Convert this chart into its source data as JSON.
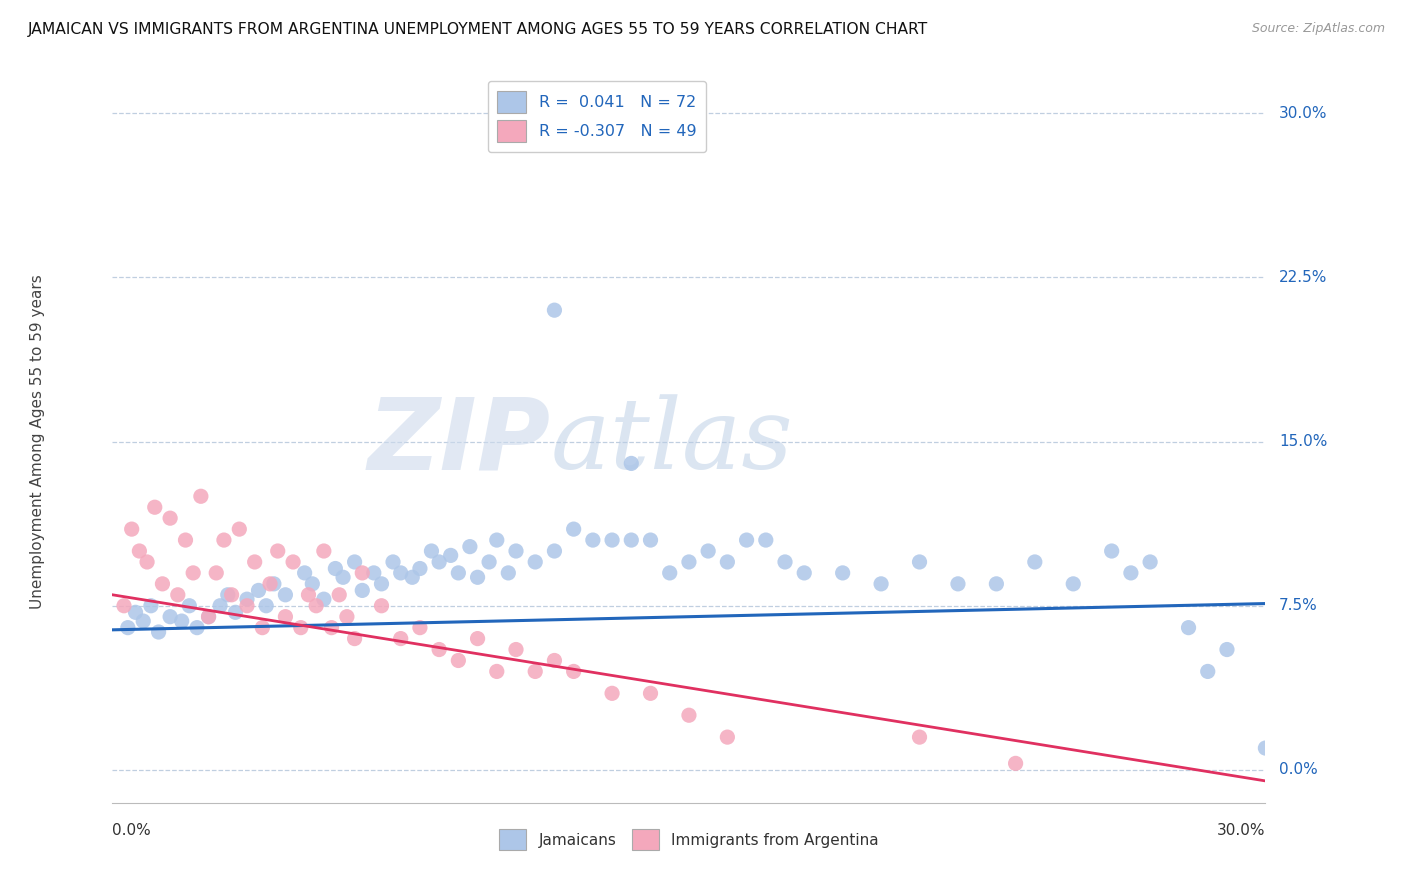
{
  "title": "JAMAICAN VS IMMIGRANTS FROM ARGENTINA UNEMPLOYMENT AMONG AGES 55 TO 59 YEARS CORRELATION CHART",
  "source": "Source: ZipAtlas.com",
  "ylabel": "Unemployment Among Ages 55 to 59 years",
  "ytick_labels": [
    "0.0%",
    "7.5%",
    "15.0%",
    "22.5%",
    "30.0%"
  ],
  "ytick_values": [
    0.0,
    7.5,
    15.0,
    22.5,
    30.0
  ],
  "xmin": 0.0,
  "xmax": 30.0,
  "ymin": -1.5,
  "ymax": 31.5,
  "blue_color": "#adc6e8",
  "pink_color": "#f4a8bc",
  "blue_line_color": "#2266bb",
  "pink_line_color": "#e03060",
  "legend_r_color": "#2266bb",
  "background_color": "#ffffff",
  "grid_color": "#c0cfe0",
  "watermark_zip": "ZIP",
  "watermark_atlas": "atlas",
  "label_jamaicans": "Jamaicans",
  "label_argentina": "Immigrants from Argentina",
  "blue_line_y0": 6.4,
  "blue_line_y1": 7.6,
  "pink_line_y0": 8.0,
  "pink_line_y1": -0.5,
  "blue_x": [
    0.4,
    0.6,
    0.8,
    1.0,
    1.2,
    1.5,
    1.8,
    2.0,
    2.2,
    2.5,
    2.8,
    3.0,
    3.2,
    3.5,
    3.8,
    4.0,
    4.2,
    4.5,
    5.0,
    5.2,
    5.5,
    5.8,
    6.0,
    6.3,
    6.5,
    6.8,
    7.0,
    7.3,
    7.5,
    7.8,
    8.0,
    8.3,
    8.5,
    8.8,
    9.0,
    9.3,
    9.5,
    9.8,
    10.0,
    10.3,
    10.5,
    11.0,
    11.5,
    12.0,
    12.5,
    13.0,
    13.5,
    14.0,
    14.5,
    15.0,
    15.5,
    16.0,
    16.5,
    17.0,
    17.5,
    18.0,
    19.0,
    20.0,
    21.0,
    22.0,
    23.0,
    24.0,
    25.0,
    26.0,
    26.5,
    27.0,
    28.0,
    28.5,
    29.0,
    30.0,
    11.5,
    13.5
  ],
  "blue_y": [
    6.5,
    7.2,
    6.8,
    7.5,
    6.3,
    7.0,
    6.8,
    7.5,
    6.5,
    7.0,
    7.5,
    8.0,
    7.2,
    7.8,
    8.2,
    7.5,
    8.5,
    8.0,
    9.0,
    8.5,
    7.8,
    9.2,
    8.8,
    9.5,
    8.2,
    9.0,
    8.5,
    9.5,
    9.0,
    8.8,
    9.2,
    10.0,
    9.5,
    9.8,
    9.0,
    10.2,
    8.8,
    9.5,
    10.5,
    9.0,
    10.0,
    9.5,
    10.0,
    11.0,
    10.5,
    10.5,
    10.5,
    10.5,
    9.0,
    9.5,
    10.0,
    9.5,
    10.5,
    10.5,
    9.5,
    9.0,
    9.0,
    8.5,
    9.5,
    8.5,
    8.5,
    9.5,
    8.5,
    10.0,
    9.0,
    9.5,
    6.5,
    4.5,
    5.5,
    1.0,
    21.0,
    14.0
  ],
  "pink_x": [
    0.3,
    0.5,
    0.7,
    0.9,
    1.1,
    1.3,
    1.5,
    1.7,
    1.9,
    2.1,
    2.3,
    2.5,
    2.7,
    2.9,
    3.1,
    3.3,
    3.5,
    3.7,
    3.9,
    4.1,
    4.3,
    4.5,
    4.7,
    4.9,
    5.1,
    5.3,
    5.5,
    5.7,
    5.9,
    6.1,
    6.3,
    6.5,
    7.0,
    7.5,
    8.0,
    8.5,
    9.0,
    9.5,
    10.0,
    10.5,
    11.0,
    11.5,
    12.0,
    13.0,
    14.0,
    15.0,
    16.0,
    21.0,
    23.5
  ],
  "pink_y": [
    7.5,
    11.0,
    10.0,
    9.5,
    12.0,
    8.5,
    11.5,
    8.0,
    10.5,
    9.0,
    12.5,
    7.0,
    9.0,
    10.5,
    8.0,
    11.0,
    7.5,
    9.5,
    6.5,
    8.5,
    10.0,
    7.0,
    9.5,
    6.5,
    8.0,
    7.5,
    10.0,
    6.5,
    8.0,
    7.0,
    6.0,
    9.0,
    7.5,
    6.0,
    6.5,
    5.5,
    5.0,
    6.0,
    4.5,
    5.5,
    4.5,
    5.0,
    4.5,
    3.5,
    3.5,
    2.5,
    1.5,
    1.5,
    0.3
  ]
}
